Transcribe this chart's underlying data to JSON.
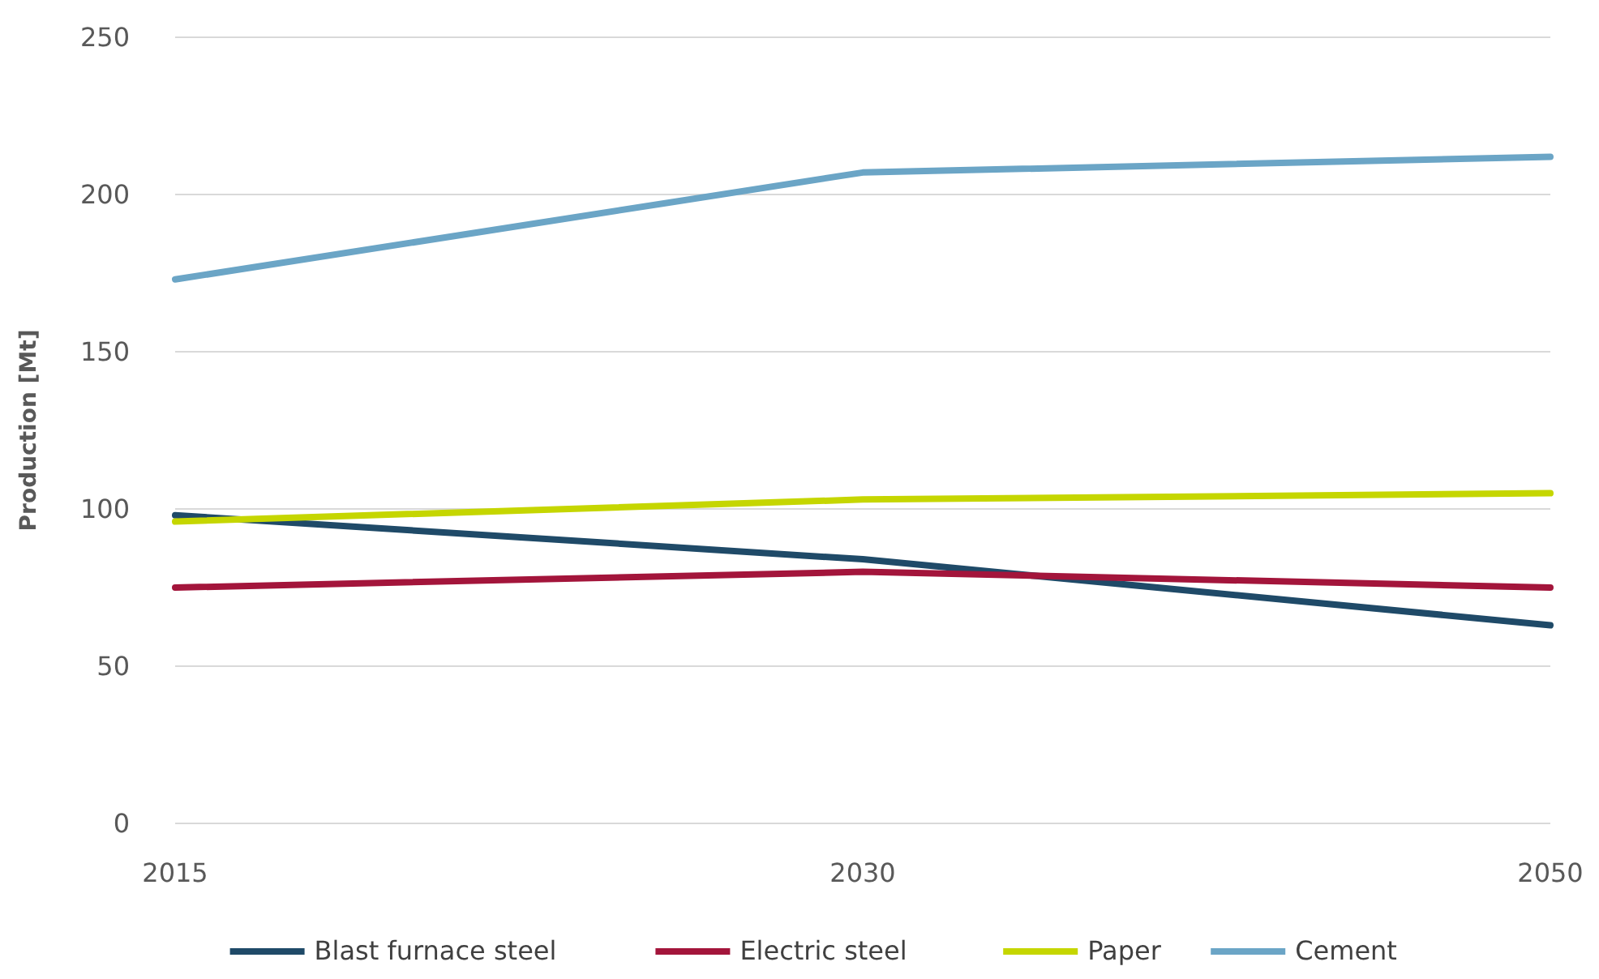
{
  "chart_data": {
    "type": "line",
    "ylabel": "Production [Mt]",
    "categories": [
      "2015",
      "2030",
      "2050"
    ],
    "series": [
      {
        "name": "Blast furnace steel",
        "color": "#1f4a68",
        "values": [
          98,
          84,
          63
        ]
      },
      {
        "name": "Electric steel",
        "color": "#a3153b",
        "values": [
          75,
          80,
          75
        ]
      },
      {
        "name": "Paper",
        "color": "#c5d600",
        "values": [
          96,
          103,
          105
        ]
      },
      {
        "name": "Cement",
        "color": "#6ba5c6",
        "values": [
          173,
          207,
          212
        ]
      }
    ],
    "ylim": [
      0,
      250
    ],
    "yticks": [
      0,
      50,
      100,
      150,
      200,
      250
    ],
    "grid": "y",
    "legend": "bottom",
    "marker": "none",
    "line_style": "solid"
  }
}
